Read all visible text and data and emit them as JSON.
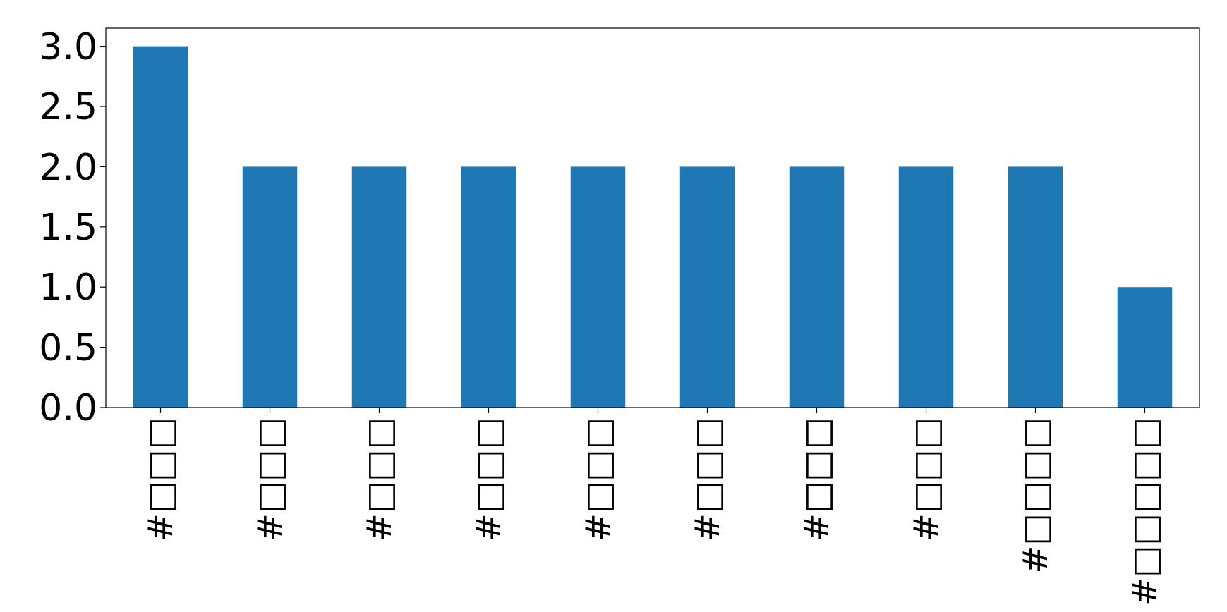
{
  "chart_data": {
    "type": "bar",
    "categories": [
      "#□□□",
      "#□□□",
      "#□□□",
      "#□□□",
      "#□□□",
      "#□□□",
      "#□□□",
      "#□□□",
      "#□□□□",
      "#□□□□□"
    ],
    "values": [
      3,
      2,
      2,
      2,
      2,
      2,
      2,
      2,
      2,
      1
    ],
    "color": "#1f77b4",
    "ylim": [
      0,
      3.15
    ],
    "yticks": [
      {
        "value": 0,
        "label": "0.0"
      },
      {
        "value": 0.5,
        "label": "0.5"
      },
      {
        "value": 1,
        "label": "1.0"
      },
      {
        "value": 1.5,
        "label": "1.5"
      },
      {
        "value": 2,
        "label": "2.0"
      },
      {
        "value": 2.5,
        "label": "2.5"
      },
      {
        "value": 3,
        "label": "3.0"
      }
    ],
    "grid": false
  }
}
